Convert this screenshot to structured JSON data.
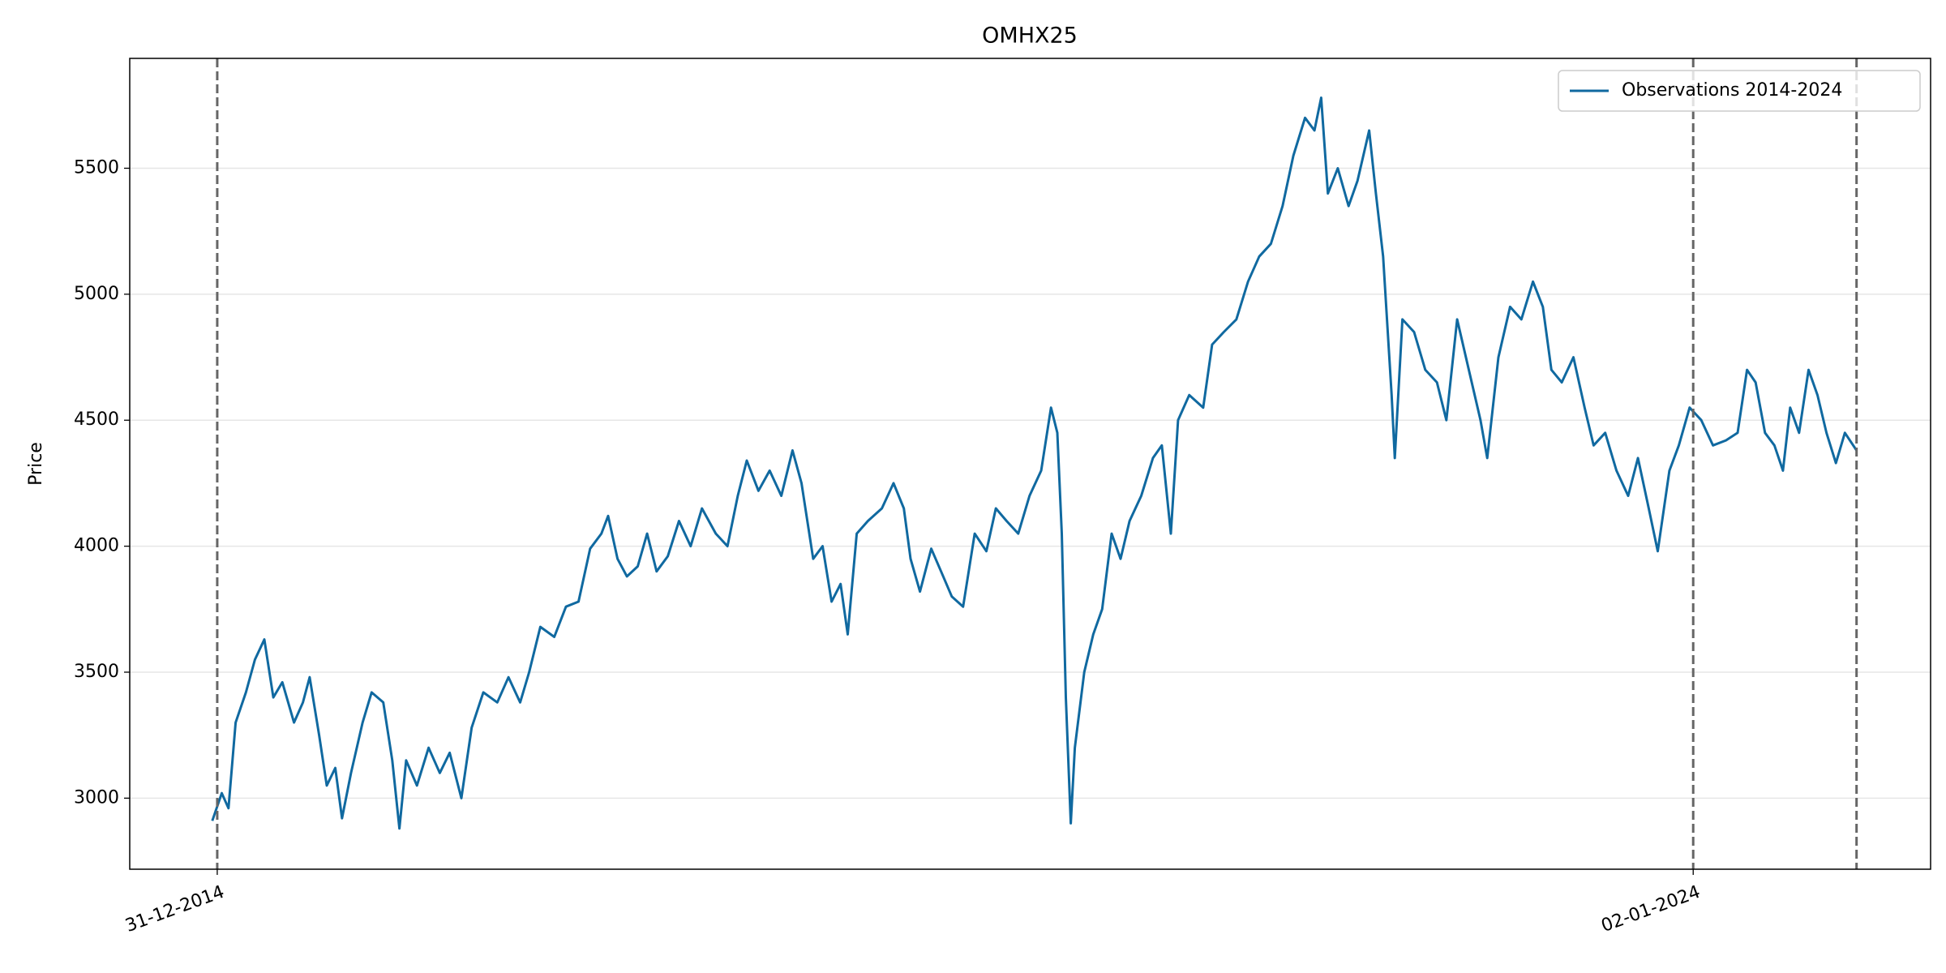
{
  "chart_data": {
    "type": "line",
    "title": "OMHX25",
    "ylabel": "Price",
    "x": [
      "2014-12-20",
      "2015-01-10",
      "2015-01-25",
      "2015-02-10",
      "2015-03-05",
      "2015-03-25",
      "2015-04-15",
      "2015-05-05",
      "2015-05-25",
      "2015-06-20",
      "2015-07-10",
      "2015-07-25",
      "2015-08-15",
      "2015-09-01",
      "2015-09-20",
      "2015-10-05",
      "2015-10-25",
      "2015-11-20",
      "2015-12-10",
      "2016-01-05",
      "2016-01-25",
      "2016-02-10",
      "2016-02-25",
      "2016-03-20",
      "2016-04-15",
      "2016-05-10",
      "2016-06-01",
      "2016-06-27",
      "2016-07-20",
      "2016-08-15",
      "2016-09-15",
      "2016-10-10",
      "2016-11-05",
      "2016-11-25",
      "2016-12-20",
      "2017-01-20",
      "2017-02-15",
      "2017-03-15",
      "2017-04-10",
      "2017-05-05",
      "2017-05-20",
      "2017-06-10",
      "2017-07-01",
      "2017-07-25",
      "2017-08-15",
      "2017-09-05",
      "2017-09-30",
      "2017-10-25",
      "2017-11-20",
      "2017-12-15",
      "2018-01-15",
      "2018-02-10",
      "2018-03-05",
      "2018-03-25",
      "2018-04-20",
      "2018-05-15",
      "2018-06-10",
      "2018-07-05",
      "2018-07-25",
      "2018-08-20",
      "2018-09-10",
      "2018-09-30",
      "2018-10-20",
      "2018-11-05",
      "2018-11-25",
      "2018-12-20",
      "2019-01-20",
      "2019-02-15",
      "2019-03-10",
      "2019-03-25",
      "2019-04-15",
      "2019-05-10",
      "2019-06-01",
      "2019-06-25",
      "2019-07-20",
      "2019-08-15",
      "2019-09-10",
      "2019-10-01",
      "2019-10-25",
      "2019-11-20",
      "2019-12-15",
      "2020-01-10",
      "2020-02-01",
      "2020-02-15",
      "2020-02-25",
      "2020-03-05",
      "2020-03-16",
      "2020-03-25",
      "2020-04-15",
      "2020-05-05",
      "2020-05-25",
      "2020-06-15",
      "2020-07-05",
      "2020-07-25",
      "2020-08-20",
      "2020-09-15",
      "2020-10-05",
      "2020-10-25",
      "2020-11-10",
      "2020-12-05",
      "2021-01-05",
      "2021-01-25",
      "2021-02-20",
      "2021-03-20",
      "2021-04-15",
      "2021-05-10",
      "2021-06-05",
      "2021-07-01",
      "2021-07-25",
      "2021-08-20",
      "2021-09-10",
      "2021-09-25",
      "2021-10-10",
      "2021-11-01",
      "2021-11-25",
      "2021-12-15",
      "2022-01-10",
      "2022-01-25",
      "2022-02-10",
      "2022-03-01",
      "2022-03-08",
      "2022-03-25",
      "2022-04-20",
      "2022-05-15",
      "2022-06-10",
      "2022-07-01",
      "2022-07-25",
      "2022-08-20",
      "2022-09-15",
      "2022-09-30",
      "2022-10-25",
      "2022-11-20",
      "2022-12-15",
      "2023-01-10",
      "2023-02-01",
      "2023-02-20",
      "2023-03-15",
      "2023-04-10",
      "2023-05-05",
      "2023-05-25",
      "2023-06-20",
      "2023-07-15",
      "2023-08-10",
      "2023-09-01",
      "2023-09-25",
      "2023-10-15",
      "2023-11-10",
      "2023-12-01",
      "2023-12-25",
      "2024-01-20",
      "2024-02-15",
      "2024-03-15",
      "2024-04-10",
      "2024-05-01",
      "2024-05-20",
      "2024-06-10",
      "2024-07-01",
      "2024-07-20",
      "2024-08-05",
      "2024-08-25",
      "2024-09-15",
      "2024-10-05",
      "2024-10-25",
      "2024-11-15",
      "2024-12-05",
      "2024-12-31"
    ],
    "series": [
      {
        "name": "Observations 2014-2024",
        "color": "#1069a0",
        "values": [
          2910,
          3020,
          2960,
          3300,
          3420,
          3550,
          3630,
          3400,
          3460,
          3300,
          3380,
          3480,
          3250,
          3050,
          3120,
          2920,
          3100,
          3300,
          3420,
          3380,
          3150,
          2880,
          3150,
          3050,
          3200,
          3100,
          3180,
          3000,
          3280,
          3420,
          3380,
          3480,
          3380,
          3500,
          3680,
          3640,
          3760,
          3780,
          3990,
          4050,
          4120,
          3950,
          3880,
          3920,
          4050,
          3900,
          3960,
          4100,
          4000,
          4150,
          4050,
          4000,
          4200,
          4340,
          4220,
          4300,
          4200,
          4380,
          4250,
          3950,
          4000,
          3780,
          3850,
          3650,
          4050,
          4100,
          4150,
          4250,
          4150,
          3950,
          3820,
          3990,
          3900,
          3800,
          3760,
          4050,
          3980,
          4150,
          4100,
          4050,
          4200,
          4300,
          4550,
          4450,
          4050,
          3400,
          2900,
          3200,
          3500,
          3650,
          3750,
          4050,
          3950,
          4100,
          4200,
          4350,
          4400,
          4050,
          4500,
          4600,
          4550,
          4800,
          4850,
          4900,
          5050,
          5150,
          5200,
          5350,
          5550,
          5700,
          5650,
          5780,
          5400,
          5500,
          5350,
          5450,
          5650,
          5400,
          5150,
          4600,
          4350,
          4900,
          4850,
          4700,
          4650,
          4500,
          4900,
          4700,
          4500,
          4350,
          4750,
          4950,
          4900,
          5050,
          4950,
          4700,
          4650,
          4750,
          4550,
          4400,
          4450,
          4300,
          4200,
          4350,
          4150,
          3980,
          4300,
          4400,
          4550,
          4500,
          4400,
          4420,
          4450,
          4700,
          4650,
          4450,
          4400,
          4300,
          4550,
          4450,
          4700,
          4600,
          4450,
          4330,
          4450,
          4380
        ]
      }
    ],
    "xlim": [
      "2014-06-19",
      "2025-06-14"
    ],
    "xticks": [
      {
        "value": "2014-12-31",
        "label": "31-12-2014"
      },
      {
        "value": "2024-01-02",
        "label": "02-01-2024"
      }
    ],
    "vlines": [
      "2014-12-31",
      "2024-01-02",
      "2024-12-31"
    ],
    "ylim": [
      2718,
      5936
    ],
    "yticks": [
      3000,
      3500,
      4000,
      4500,
      5000,
      5500
    ],
    "grid": true,
    "legend": "upper right"
  }
}
